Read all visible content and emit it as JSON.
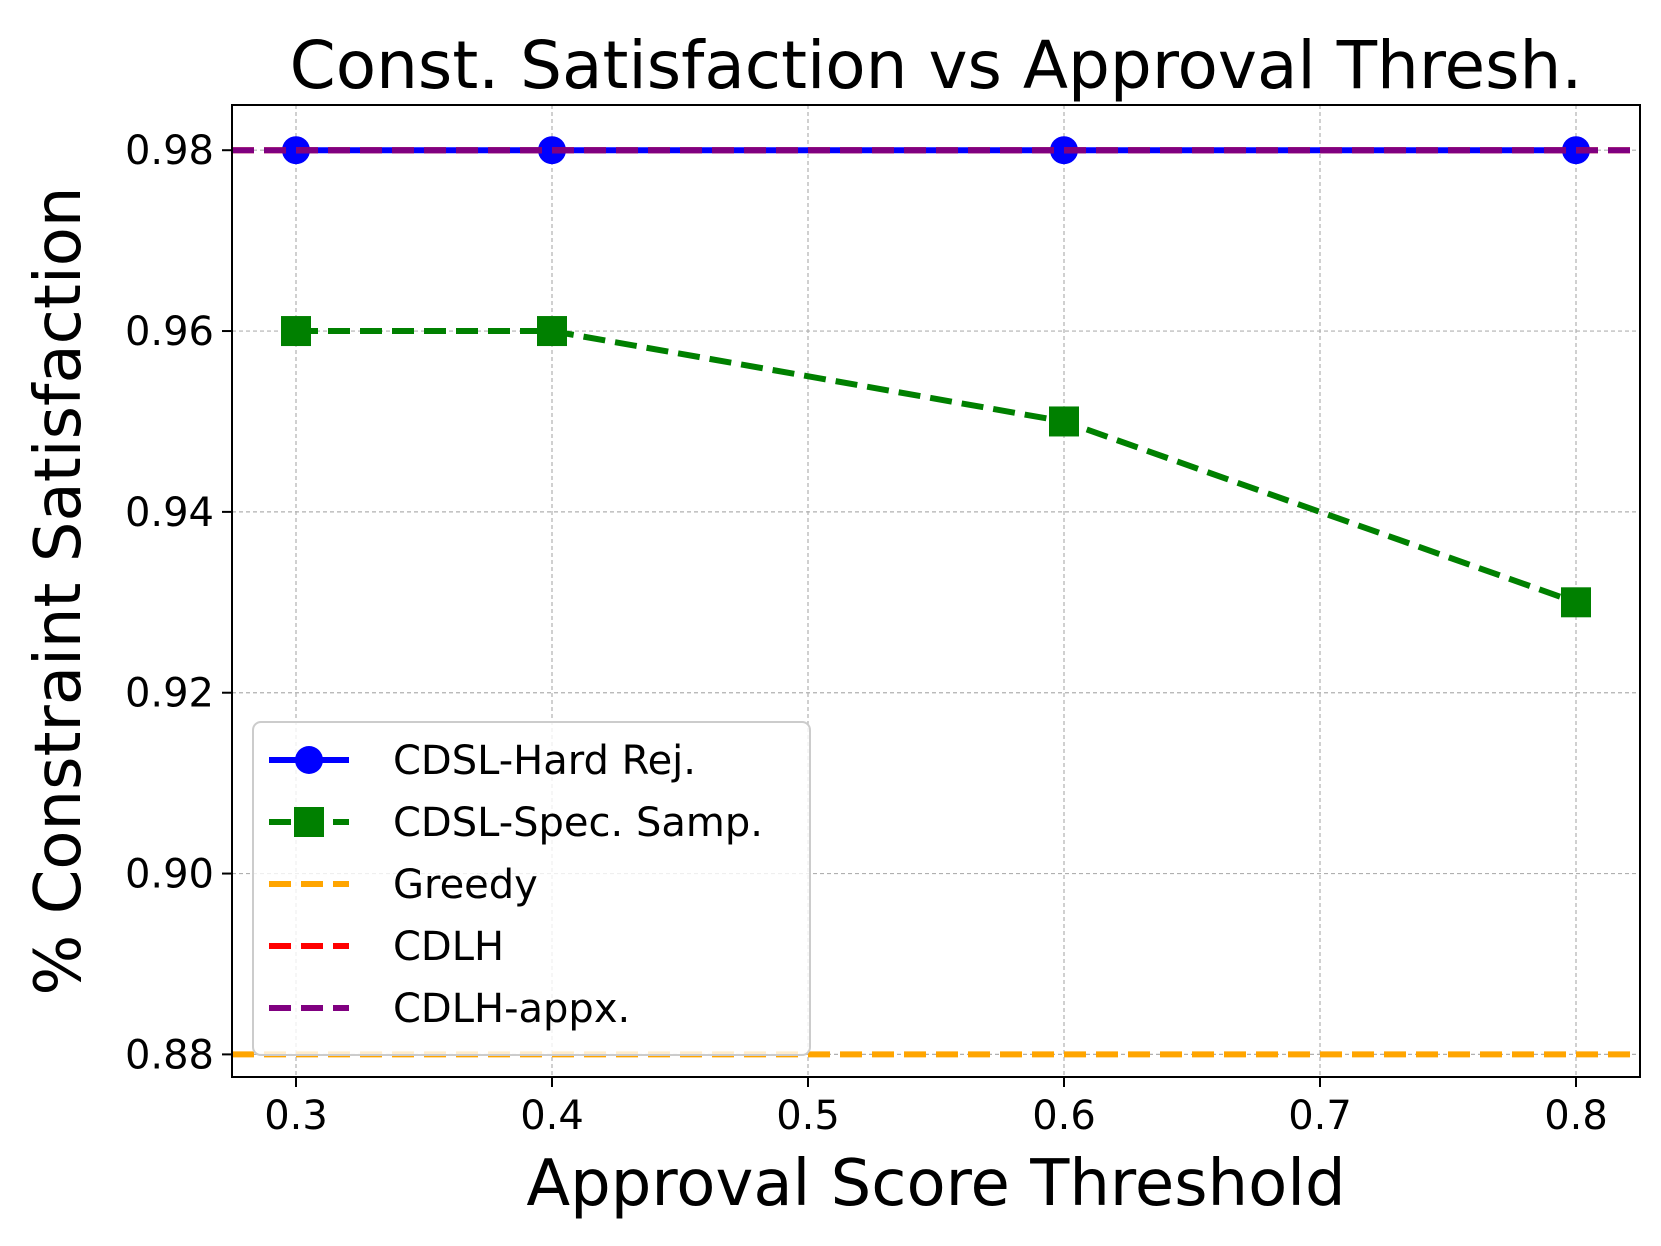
{
  "chart_data": {
    "type": "line",
    "title": "Const. Satisfaction vs Approval Thresh.",
    "xlabel": "Approval Score Threshold",
    "ylabel": "% Constraint Satisfaction",
    "xlim": [
      0.275,
      0.825
    ],
    "ylim": [
      0.8775,
      0.985
    ],
    "xticks": [
      0.3,
      0.4,
      0.5,
      0.6,
      0.7,
      0.8
    ],
    "xtick_labels": [
      "0.3",
      "0.4",
      "0.5",
      "0.6",
      "0.7",
      "0.8"
    ],
    "yticks": [
      0.88,
      0.9,
      0.92,
      0.94,
      0.96,
      0.98
    ],
    "ytick_labels": [
      "0.88",
      "0.90",
      "0.92",
      "0.94",
      "0.96",
      "0.98"
    ],
    "grid": true,
    "legend_position": "lower-left",
    "series": [
      {
        "name": "CDSL-Hard Rej.",
        "kind": "line",
        "marker": "circle",
        "dash": "solid",
        "color": "#0000ff",
        "x": [
          0.3,
          0.4,
          0.6,
          0.8
        ],
        "y": [
          0.98,
          0.98,
          0.98,
          0.98
        ]
      },
      {
        "name": "CDSL-Spec. Samp.",
        "kind": "line",
        "marker": "square",
        "dash": "dashed",
        "color": "#008000",
        "x": [
          0.3,
          0.4,
          0.6,
          0.8
        ],
        "y": [
          0.96,
          0.96,
          0.95,
          0.93
        ]
      },
      {
        "name": "Greedy",
        "kind": "hline",
        "dash": "dashed",
        "color": "#ffa500",
        "y": 0.88
      },
      {
        "name": "CDLH",
        "kind": "hline",
        "dash": "dashed",
        "color": "#ff0000",
        "y": 0.98
      },
      {
        "name": "CDLH-appx.",
        "kind": "hline",
        "dash": "dashed",
        "color": "#800080",
        "y": 0.98
      }
    ]
  }
}
